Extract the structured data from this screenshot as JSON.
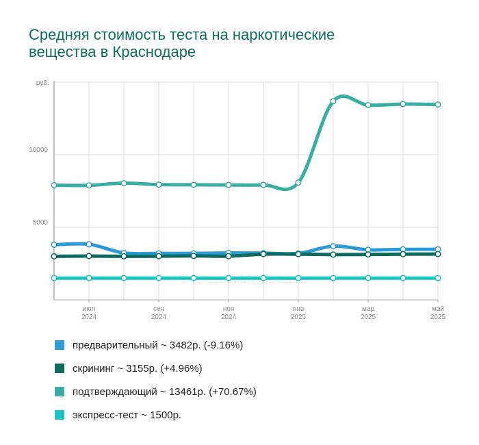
{
  "title_lines": [
    "Средняя стоимость теста на наркотические",
    "вещества в Краснодаре"
  ],
  "watermark": "© KrasotaiMedicina.ru",
  "chart_data": {
    "type": "line",
    "y_unit_label": "руб.",
    "y_ticks": [
      5000,
      10000
    ],
    "ylim": [
      0,
      15000
    ],
    "x_tick_labels": [
      {
        "month": "июл",
        "year": "2024",
        "at": 1
      },
      {
        "month": "сен",
        "year": "2024",
        "at": 3
      },
      {
        "month": "ноя",
        "year": "2024",
        "at": 5
      },
      {
        "month": "янв",
        "year": "2025",
        "at": 7
      },
      {
        "month": "мар",
        "year": "2025",
        "at": 9
      },
      {
        "month": "май",
        "year": "2025",
        "at": 11
      }
    ],
    "x": [
      "2024-06",
      "2024-07",
      "2024-08",
      "2024-09",
      "2024-10",
      "2024-11",
      "2024-12",
      "2025-01",
      "2025-02",
      "2025-03",
      "2025-04",
      "2025-05"
    ],
    "grid": true,
    "series": [
      {
        "name": "предварительный",
        "color": "#2d9ad8",
        "values": [
          3800,
          3830,
          3230,
          3200,
          3200,
          3230,
          3220,
          3200,
          3700,
          3450,
          3480,
          3482
        ]
      },
      {
        "name": "скрининг",
        "color": "#0d6b60",
        "values": [
          3000,
          3020,
          3000,
          3010,
          3030,
          3010,
          3150,
          3150,
          3120,
          3130,
          3150,
          3155
        ]
      },
      {
        "name": "подтверждающий",
        "color": "#3aada4",
        "values": [
          7900,
          7890,
          8040,
          7940,
          7930,
          7920,
          7920,
          8080,
          13690,
          13420,
          13490,
          13461
        ]
      },
      {
        "name": "экспресс-тест",
        "color": "#19c5c0",
        "values": [
          1500,
          1500,
          1500,
          1500,
          1500,
          1500,
          1500,
          1500,
          1500,
          1500,
          1500,
          1500
        ]
      }
    ]
  },
  "legend": [
    {
      "label": "предварительный ~ 3482р. (-9.16%)",
      "color": "#2d9ad8"
    },
    {
      "label": "скрининг ~ 3155р. (+4.96%)",
      "color": "#0d6b60"
    },
    {
      "label": "подтверждающий ~ 13461р. (+70.67%)",
      "color": "#3aada4"
    },
    {
      "label": "экспресс-тест ~ 1500р.",
      "color": "#19c5c0"
    }
  ]
}
